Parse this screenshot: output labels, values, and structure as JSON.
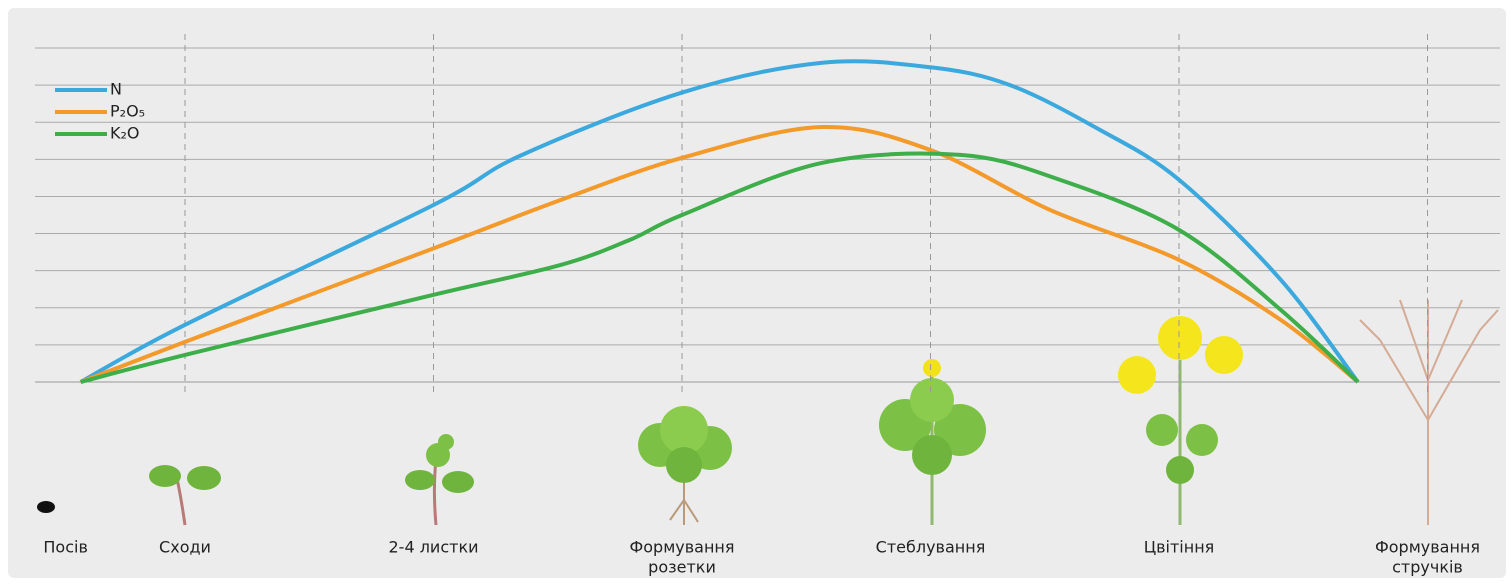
{
  "chart_data": {
    "type": "line",
    "ylim": [
      0,
      9
    ],
    "yticks": [
      0,
      1,
      2,
      3,
      4,
      5,
      6,
      7,
      8,
      9
    ],
    "grid": true,
    "stages": [
      {
        "lines": [
          "Посів"
        ],
        "x": 0.58
      },
      {
        "lines": [
          "Сходи"
        ],
        "x": 1
      },
      {
        "lines": [
          "2-4 листки"
        ],
        "x": 2
      },
      {
        "lines": [
          "Формування",
          "розетки"
        ],
        "x": 3
      },
      {
        "lines": [
          "Стеблування"
        ],
        "x": 4
      },
      {
        "lines": [
          "Цвітіння"
        ],
        "x": 5
      },
      {
        "lines": [
          "Формування",
          "стручків"
        ],
        "x": 6
      }
    ],
    "legend": "top-left",
    "series": [
      {
        "name": "N",
        "color": "#3ba9dd",
        "x": [
          0.58,
          1,
          2,
          2.35,
          3,
          3.56,
          4,
          4.32,
          4.68,
          5,
          5.41,
          5.72
        ],
        "values": [
          0,
          1.54,
          4.77,
          6.1,
          7.8,
          8.6,
          8.48,
          8.0,
          6.8,
          5.45,
          2.75,
          0
        ]
      },
      {
        "name": "P₂O₅",
        "color": "#f39a2b",
        "x": [
          0.58,
          1,
          2,
          2.51,
          3,
          3.56,
          4,
          4.48,
          5,
          5.41,
          5.72
        ],
        "values": [
          0,
          1.08,
          3.6,
          4.9,
          6.04,
          6.87,
          6.25,
          4.64,
          3.29,
          1.67,
          0
        ]
      },
      {
        "name": "K₂O",
        "color": "#3dae49",
        "x": [
          0.58,
          1,
          2,
          2.51,
          2.79,
          3,
          3.56,
          4.12,
          4.52,
          5,
          5.41,
          5.72
        ],
        "values": [
          0,
          0.73,
          2.35,
          3.15,
          3.83,
          4.5,
          5.9,
          6.12,
          5.45,
          4.1,
          1.94,
          0
        ]
      }
    ]
  }
}
